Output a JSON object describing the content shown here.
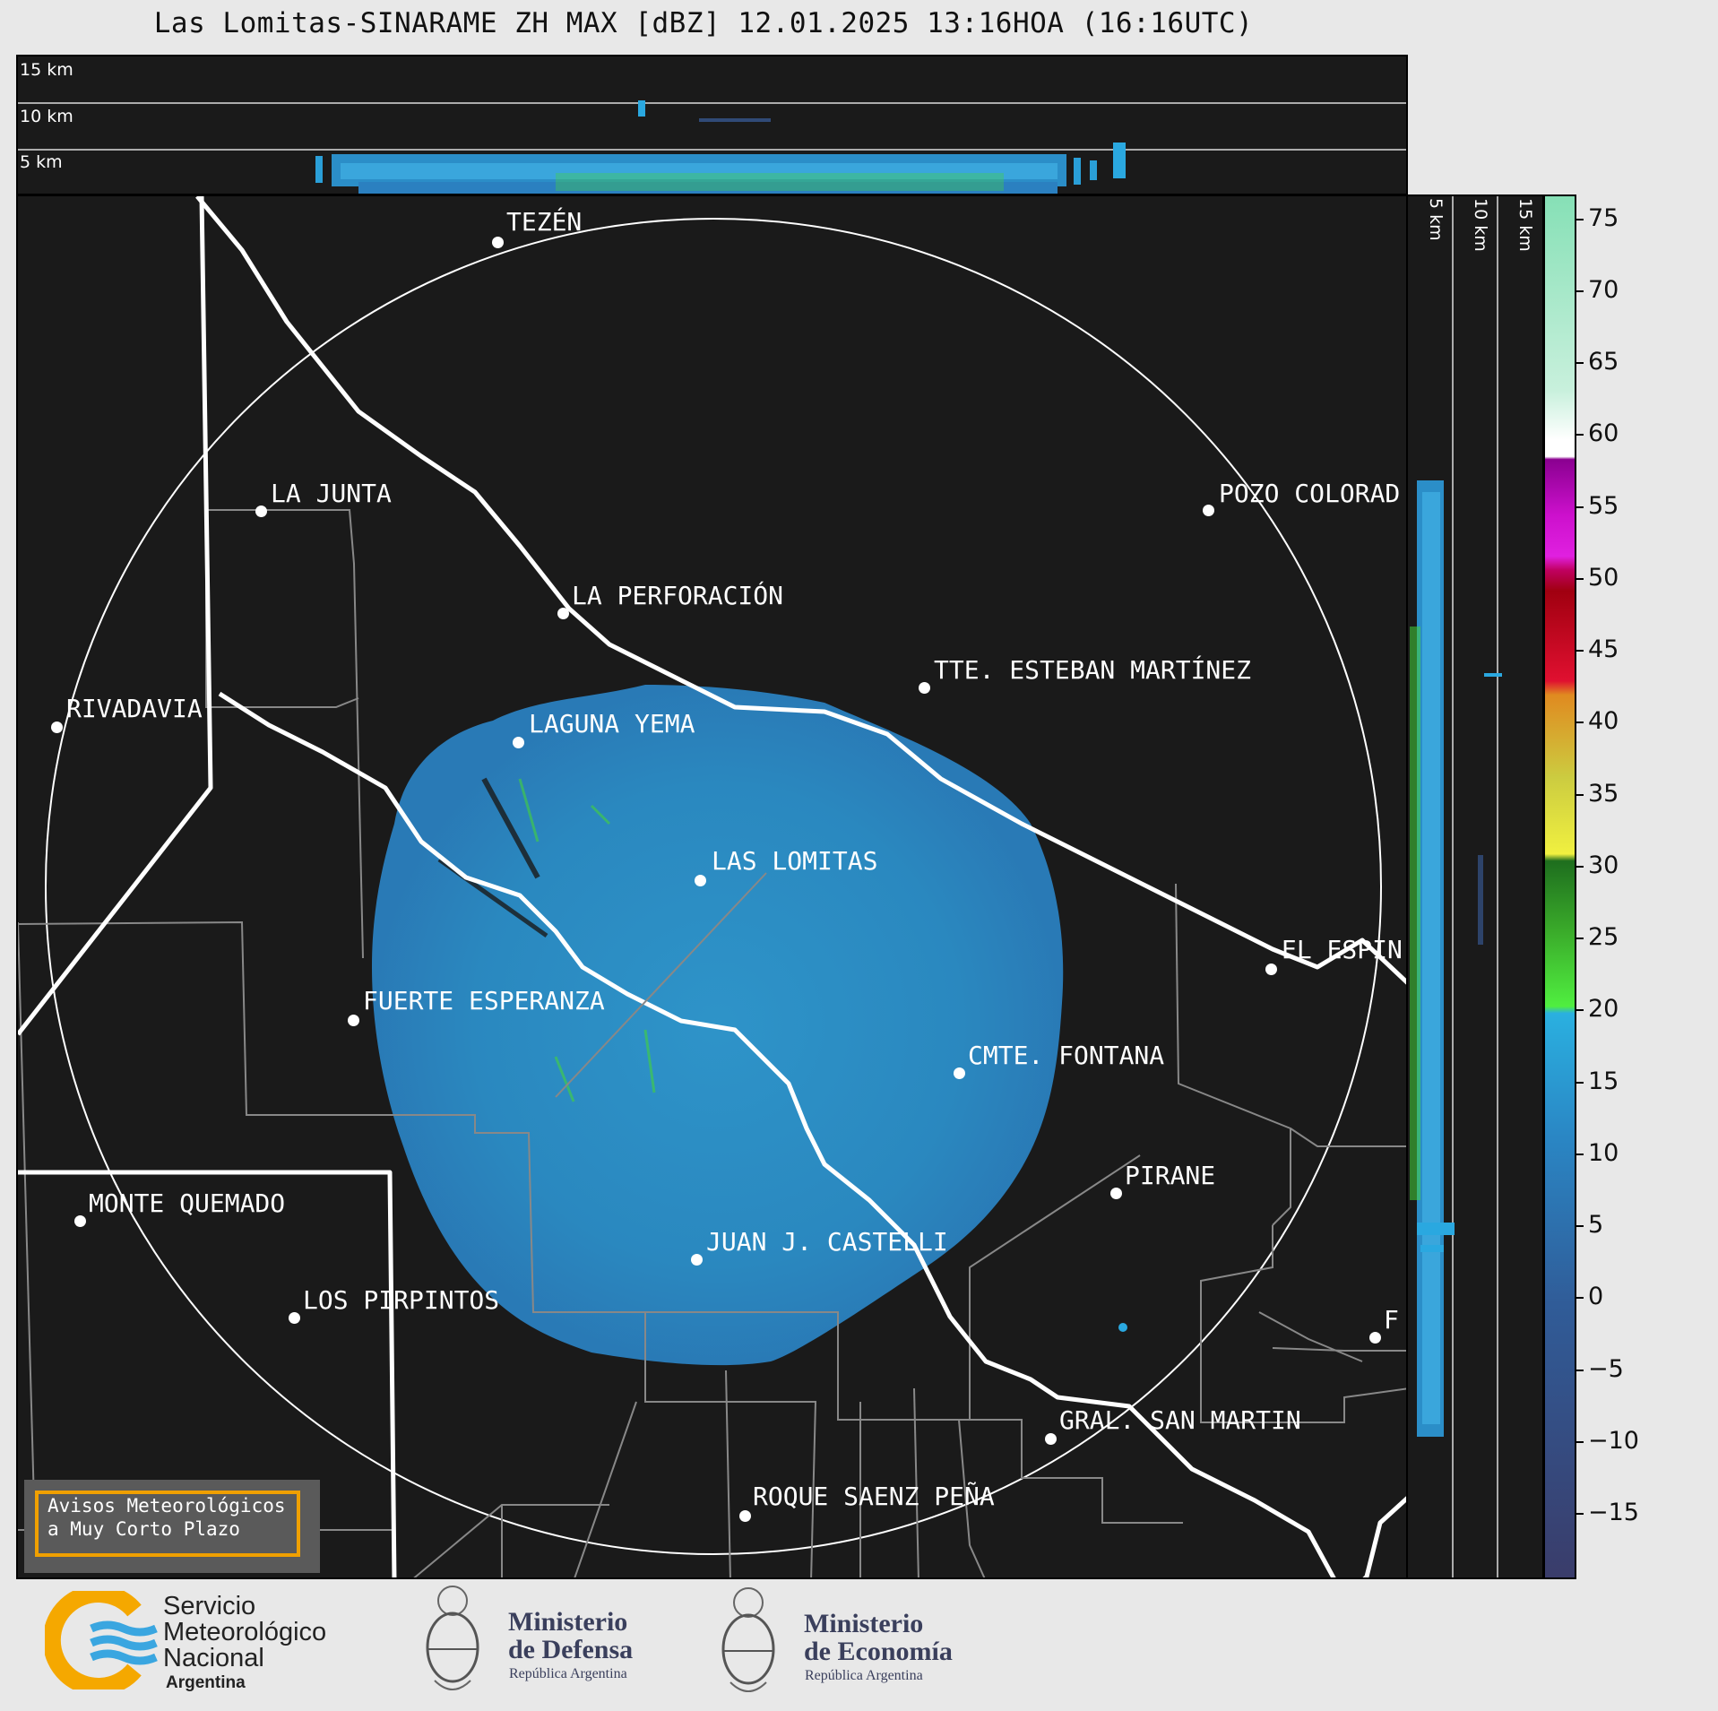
{
  "title": "Las Lomitas-SINARAME ZH MAX [dBZ] 12.01.2025 13:16HOA (16:16UTC)",
  "top_panel": {
    "height_labels": [
      "15 km",
      "10 km",
      "5 km"
    ]
  },
  "side_panel": {
    "height_labels": [
      "5 km",
      "10 km",
      "15 km"
    ]
  },
  "cities": [
    {
      "name": "TEZÉN"
    },
    {
      "name": "LA JUNTA"
    },
    {
      "name": "POZO COLORAD"
    },
    {
      "name": "LA PERFORACIÓN"
    },
    {
      "name": "TTE. ESTEBAN MARTÍNEZ"
    },
    {
      "name": "RIVADAVIA"
    },
    {
      "name": "LAGUNA YEMA"
    },
    {
      "name": "LAS LOMITAS"
    },
    {
      "name": "EL ESPIN"
    },
    {
      "name": "FUERTE ESPERANZA"
    },
    {
      "name": "CMTE. FONTANA"
    },
    {
      "name": "PIRANE"
    },
    {
      "name": "MONTE QUEMADO"
    },
    {
      "name": "JUAN J. CASTELLI"
    },
    {
      "name": "LOS PIRPINTOS"
    },
    {
      "name": "F"
    },
    {
      "name": "GRAL. SAN MARTIN"
    },
    {
      "name": "ROQUE SAENZ PEÑA"
    }
  ],
  "colorbar": {
    "unit": "dBZ",
    "ticks": [
      "75",
      "70",
      "65",
      "60",
      "55",
      "50",
      "45",
      "40",
      "35",
      "30",
      "25",
      "20",
      "15",
      "10",
      "5",
      "0",
      "−5",
      "−10",
      "−15"
    ],
    "colors": {
      "low": "#3a3f6e",
      "blue": "#2b8ec8",
      "green": "#44d43a",
      "yellow": "#e8e840",
      "orange": "#e08a20",
      "red": "#cc1020",
      "magenta": "#e020e0",
      "white": "#ffffff",
      "teal": "#88ddbb"
    }
  },
  "warning_box": {
    "line1": "Avisos Meteorológicos",
    "line2": "a Muy Corto Plazo"
  },
  "logos": {
    "smn": {
      "line1": "Servicio",
      "line2": "Meteorológico",
      "line3": "Nacional",
      "line4": "Argentina"
    },
    "defensa": {
      "line1": "Ministerio",
      "line2": "de Defensa",
      "line3": "República Argentina"
    },
    "economia": {
      "line1": "Ministerio",
      "line2": "de Economía",
      "line3": "República Argentina"
    }
  }
}
